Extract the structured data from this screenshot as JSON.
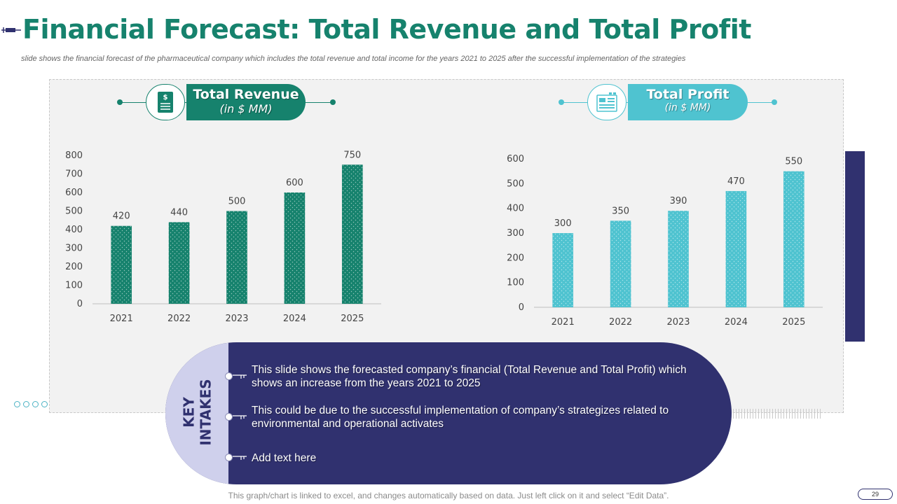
{
  "slide": {
    "title": "Financial Forecast: Total Revenue and Total Profit",
    "subtitle": "slide shows the financial forecast of the pharmaceutical company which includes the total revenue and total income for the years 2021 to 2025 after the successful implementation of the strategies",
    "page_number": "29",
    "footer_note": "This graph/chart is linked to excel, and changes automatically based on data. Just left click on it and select “Edit Data”."
  },
  "revenue_header": {
    "title": "Total Revenue",
    "unit": "(in $ MM)",
    "icon": "document-dollar-icon"
  },
  "profit_header": {
    "title": "Total Profit",
    "unit": "(in $ MM)",
    "icon": "financial-dashboard-icon"
  },
  "colors": {
    "title": "#16826d",
    "revenue": "#16826d",
    "profit": "#4fc3d0",
    "navy": "#30316f",
    "cap": "#cfd0ec"
  },
  "key_intakes": {
    "label": "KEY\nINTAKES",
    "bullets": [
      "This slide shows the forecasted company’s financial (Total Revenue and Total Profit) which shows an increase from the years 2021 to 2025",
      "This could be due to the successful implementation of company’s strategizes related to environmental and operational activates",
      "Add text here"
    ]
  },
  "chart_data": [
    {
      "type": "bar",
      "categories": [
        "2021",
        "2022",
        "2023",
        "2024",
        "2025"
      ],
      "values": [
        420,
        440,
        500,
        600,
        750
      ],
      "ylim": [
        0,
        800
      ],
      "yticks": [
        0,
        100,
        200,
        300,
        400,
        500,
        600,
        700,
        800
      ],
      "data_labels": true,
      "grid": false,
      "pattern": "dotted",
      "color": "#16826d"
    },
    {
      "type": "bar",
      "categories": [
        "2021",
        "2022",
        "2023",
        "2024",
        "2025"
      ],
      "values": [
        300,
        350,
        390,
        470,
        550
      ],
      "ylim": [
        0,
        600
      ],
      "yticks": [
        0,
        100,
        200,
        300,
        400,
        500,
        600
      ],
      "data_labels": true,
      "grid": false,
      "pattern": "dotted",
      "color": "#4fc3d0"
    }
  ]
}
